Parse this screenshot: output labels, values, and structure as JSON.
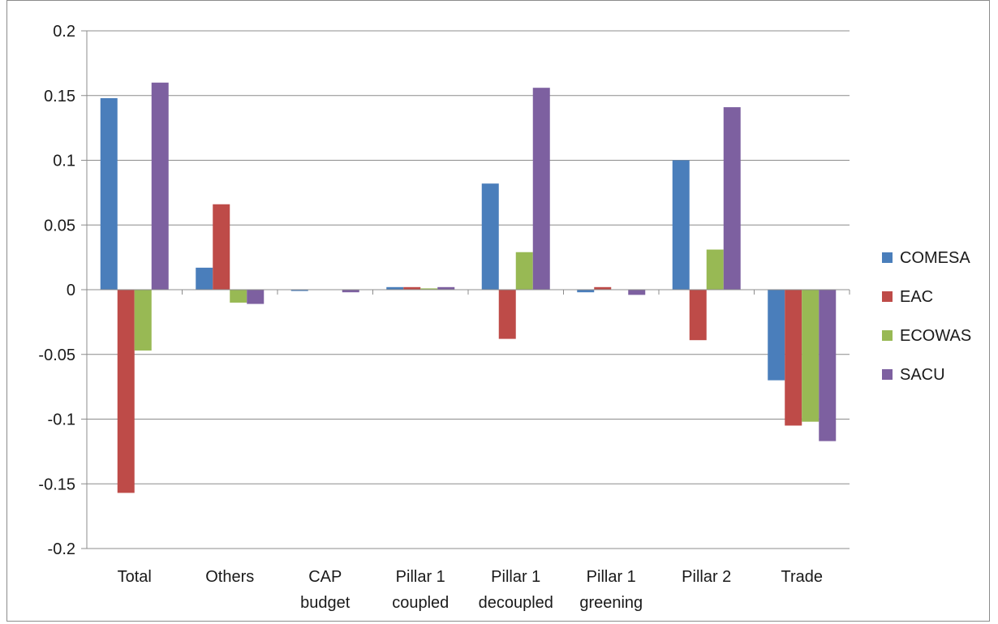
{
  "chart_data": {
    "type": "bar",
    "categories": [
      [
        "Total"
      ],
      [
        "Others"
      ],
      [
        "CAP",
        "budget"
      ],
      [
        "Pillar 1",
        "coupled"
      ],
      [
        "Pillar 1",
        "decoupled"
      ],
      [
        "Pillar 1",
        "greening"
      ],
      [
        "Pillar 2"
      ],
      [
        "Trade"
      ]
    ],
    "series": [
      {
        "name": "COMESA",
        "color": "#4a7ebb",
        "values": [
          0.148,
          0.017,
          -0.001,
          0.002,
          0.082,
          -0.002,
          0.1,
          -0.07
        ]
      },
      {
        "name": "EAC",
        "color": "#be4b48",
        "values": [
          -0.157,
          0.066,
          0.0,
          0.002,
          -0.038,
          0.002,
          -0.039,
          -0.105
        ]
      },
      {
        "name": "ECOWAS",
        "color": "#98b954",
        "values": [
          -0.047,
          -0.01,
          0.0,
          0.001,
          0.029,
          0.0,
          0.031,
          -0.102
        ]
      },
      {
        "name": "SACU",
        "color": "#7d60a0",
        "values": [
          0.16,
          -0.011,
          -0.002,
          0.002,
          0.156,
          -0.004,
          0.141,
          -0.117
        ]
      }
    ],
    "yticks": [
      "0.2",
      "0.15",
      "0.1",
      "0.05",
      "0",
      "-0.05",
      "-0.1",
      "-0.15",
      "-0.2"
    ],
    "ylim": [
      -0.2,
      0.2
    ],
    "grid": true,
    "legend_position": "right",
    "title": "",
    "xlabel": "",
    "ylabel": ""
  }
}
